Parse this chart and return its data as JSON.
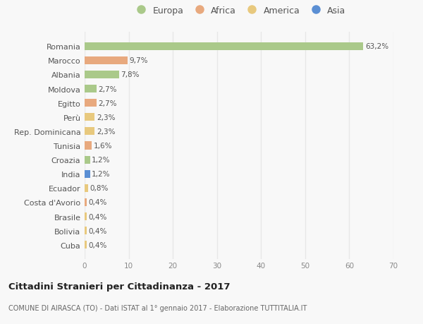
{
  "categories": [
    "Romania",
    "Marocco",
    "Albania",
    "Moldova",
    "Egitto",
    "Perù",
    "Rep. Dominicana",
    "Tunisia",
    "Croazia",
    "India",
    "Ecuador",
    "Costa d'Avorio",
    "Brasile",
    "Bolivia",
    "Cuba"
  ],
  "values": [
    63.2,
    9.7,
    7.8,
    2.7,
    2.7,
    2.3,
    2.3,
    1.6,
    1.2,
    1.2,
    0.8,
    0.4,
    0.4,
    0.4,
    0.4
  ],
  "labels": [
    "63,2%",
    "9,7%",
    "7,8%",
    "2,7%",
    "2,7%",
    "2,3%",
    "2,3%",
    "1,6%",
    "1,2%",
    "1,2%",
    "0,8%",
    "0,4%",
    "0,4%",
    "0,4%",
    "0,4%"
  ],
  "colors": [
    "#aac98a",
    "#e8a97e",
    "#aac98a",
    "#aac98a",
    "#e8a97e",
    "#e8c97e",
    "#e8c97e",
    "#e8a97e",
    "#aac98a",
    "#5b8fd4",
    "#e8c97e",
    "#e8a97e",
    "#e8c97e",
    "#e8c97e",
    "#e8c97e"
  ],
  "legend": [
    {
      "label": "Europa",
      "color": "#aac98a"
    },
    {
      "label": "Africa",
      "color": "#e8a97e"
    },
    {
      "label": "America",
      "color": "#e8c97e"
    },
    {
      "label": "Asia",
      "color": "#5b8fd4"
    }
  ],
  "xlim": [
    0,
    70
  ],
  "xticks": [
    0,
    10,
    20,
    30,
    40,
    50,
    60,
    70
  ],
  "title": "Cittadini Stranieri per Cittadinanza - 2017",
  "subtitle": "COMUNE DI AIRASCA (TO) - Dati ISTAT al 1° gennaio 2017 - Elaborazione TUTTITALIA.IT",
  "background_color": "#f8f8f8",
  "grid_color": "#e8e8e8",
  "bar_height": 0.55
}
